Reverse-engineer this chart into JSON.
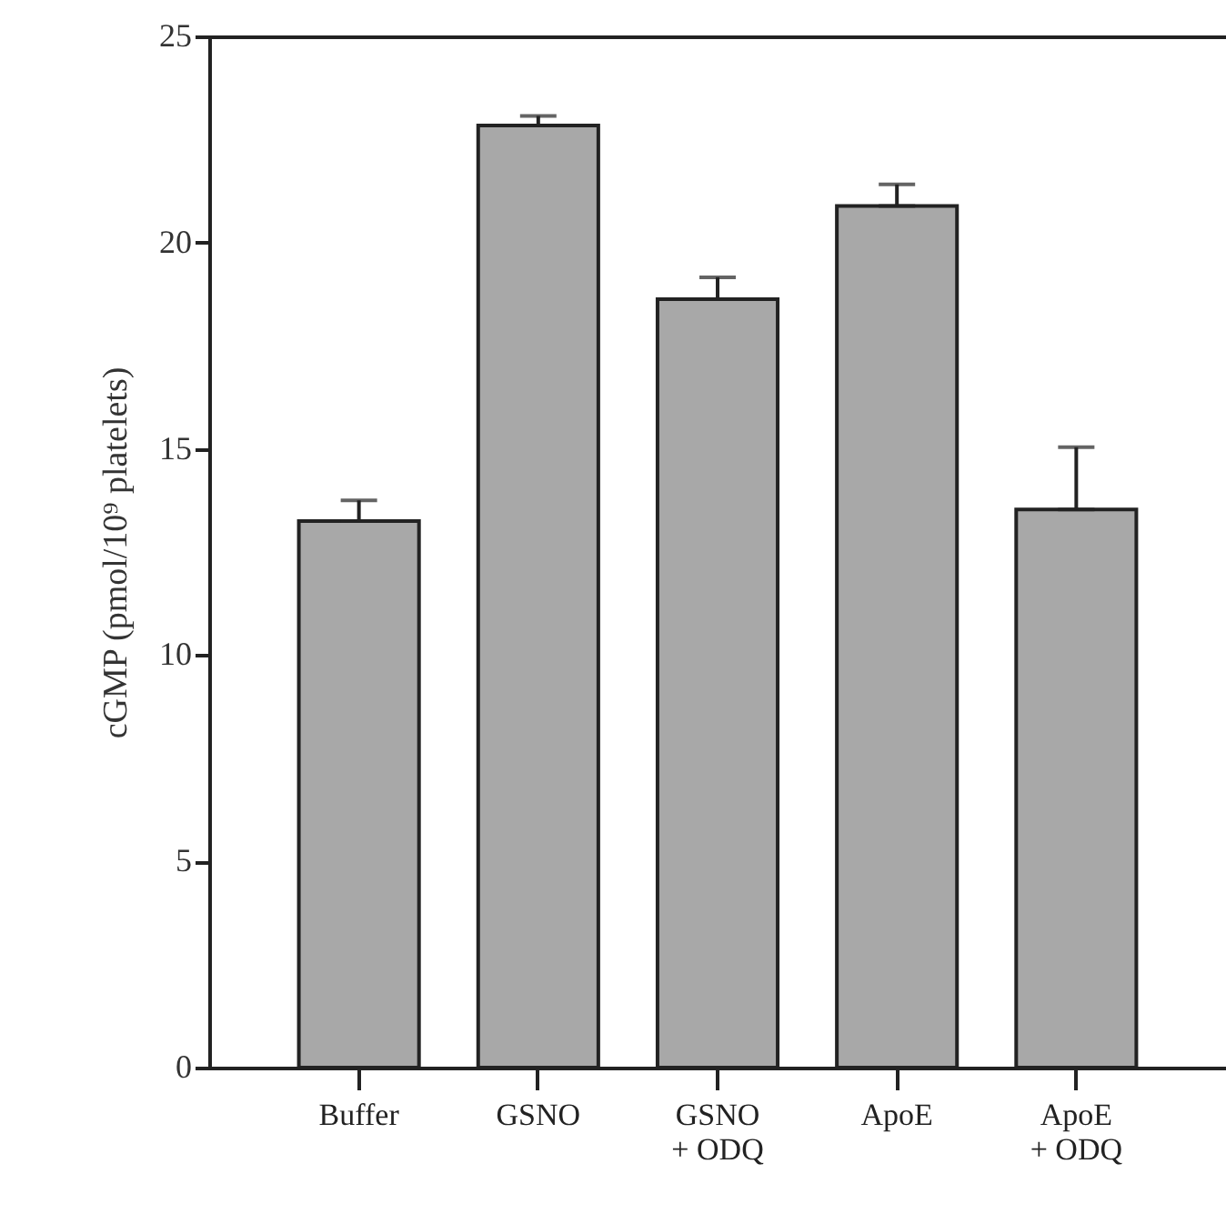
{
  "chart_data": {
    "type": "bar",
    "ylabel": "cGMP (pmol/10⁹ platelets)",
    "categories": [
      "Buffer",
      "GSNO",
      "GSNO\n+ ODQ",
      "ApoE",
      "ApoE\n+ ODQ"
    ],
    "values": [
      13.25,
      22.84,
      18.63,
      20.89,
      13.53
    ],
    "errors": [
      0.5,
      0.23,
      0.53,
      0.52,
      1.51
    ],
    "color": "#a8a8a8",
    "ylim": [
      0,
      25
    ],
    "yticks": [
      0,
      5,
      10,
      15,
      20,
      25
    ],
    "grid": false
  }
}
